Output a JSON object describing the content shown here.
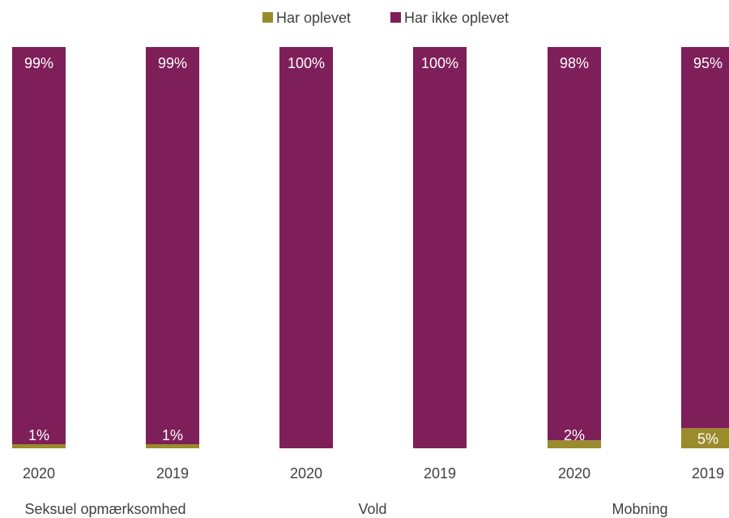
{
  "chart_data": {
    "type": "bar",
    "stacked": true,
    "percent_stacked": true,
    "legend_position": "top",
    "grid": false,
    "ylim": [
      0,
      100
    ],
    "categories": [
      "2020",
      "2019",
      "2020",
      "2019",
      "2020",
      "2019"
    ],
    "groups": [
      {
        "label": "Seksuel opmærksomhed",
        "categories": [
          0,
          1
        ]
      },
      {
        "label": "Vold",
        "categories": [
          2,
          3
        ]
      },
      {
        "label": "Mobning",
        "categories": [
          4,
          5
        ]
      }
    ],
    "series": [
      {
        "name": "Har oplevet",
        "color": "#9a8c2c",
        "values": [
          1,
          1,
          0,
          0,
          2,
          5
        ],
        "labels": [
          "1%",
          "1%",
          "",
          "",
          "2%",
          "5%"
        ]
      },
      {
        "name": "Har ikke oplevet",
        "color": "#7f1f5a",
        "values": [
          99,
          99,
          100,
          100,
          98,
          95
        ],
        "labels": [
          "99%",
          "99%",
          "100%",
          "100%",
          "98%",
          "95%"
        ]
      }
    ]
  }
}
